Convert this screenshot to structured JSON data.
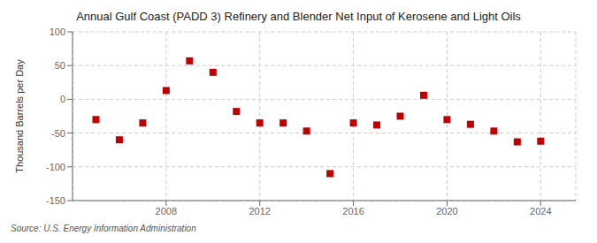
{
  "chart_data": {
    "type": "scatter",
    "title": "Annual Gulf Coast (PADD 3) Refinery and Blender Net Input of Kerosene and Light Oils",
    "ylabel": "Thousand Barrels per Day",
    "annotations": [
      "Source: U.S. Energy Information Administration"
    ],
    "x": [
      2005,
      2006,
      2007,
      2008,
      2009,
      2010,
      2011,
      2012,
      2013,
      2014,
      2015,
      2016,
      2017,
      2018,
      2019,
      2020,
      2021,
      2022,
      2023,
      2024
    ],
    "values": [
      -30,
      -60,
      -35,
      13,
      57,
      40,
      -18,
      -35,
      -35,
      -47,
      -110,
      -35,
      -38,
      -25,
      6,
      -30,
      -37,
      -47,
      -63,
      -62
    ],
    "xlim": [
      2004.0,
      2025.5
    ],
    "xticks": [
      2008,
      2012,
      2016,
      2020,
      2024
    ],
    "ylim": [
      -150,
      100
    ],
    "yticks": [
      -150,
      -100,
      -50,
      0,
      50,
      100
    ],
    "color": "#c00000",
    "marker": "square",
    "grid": true
  }
}
